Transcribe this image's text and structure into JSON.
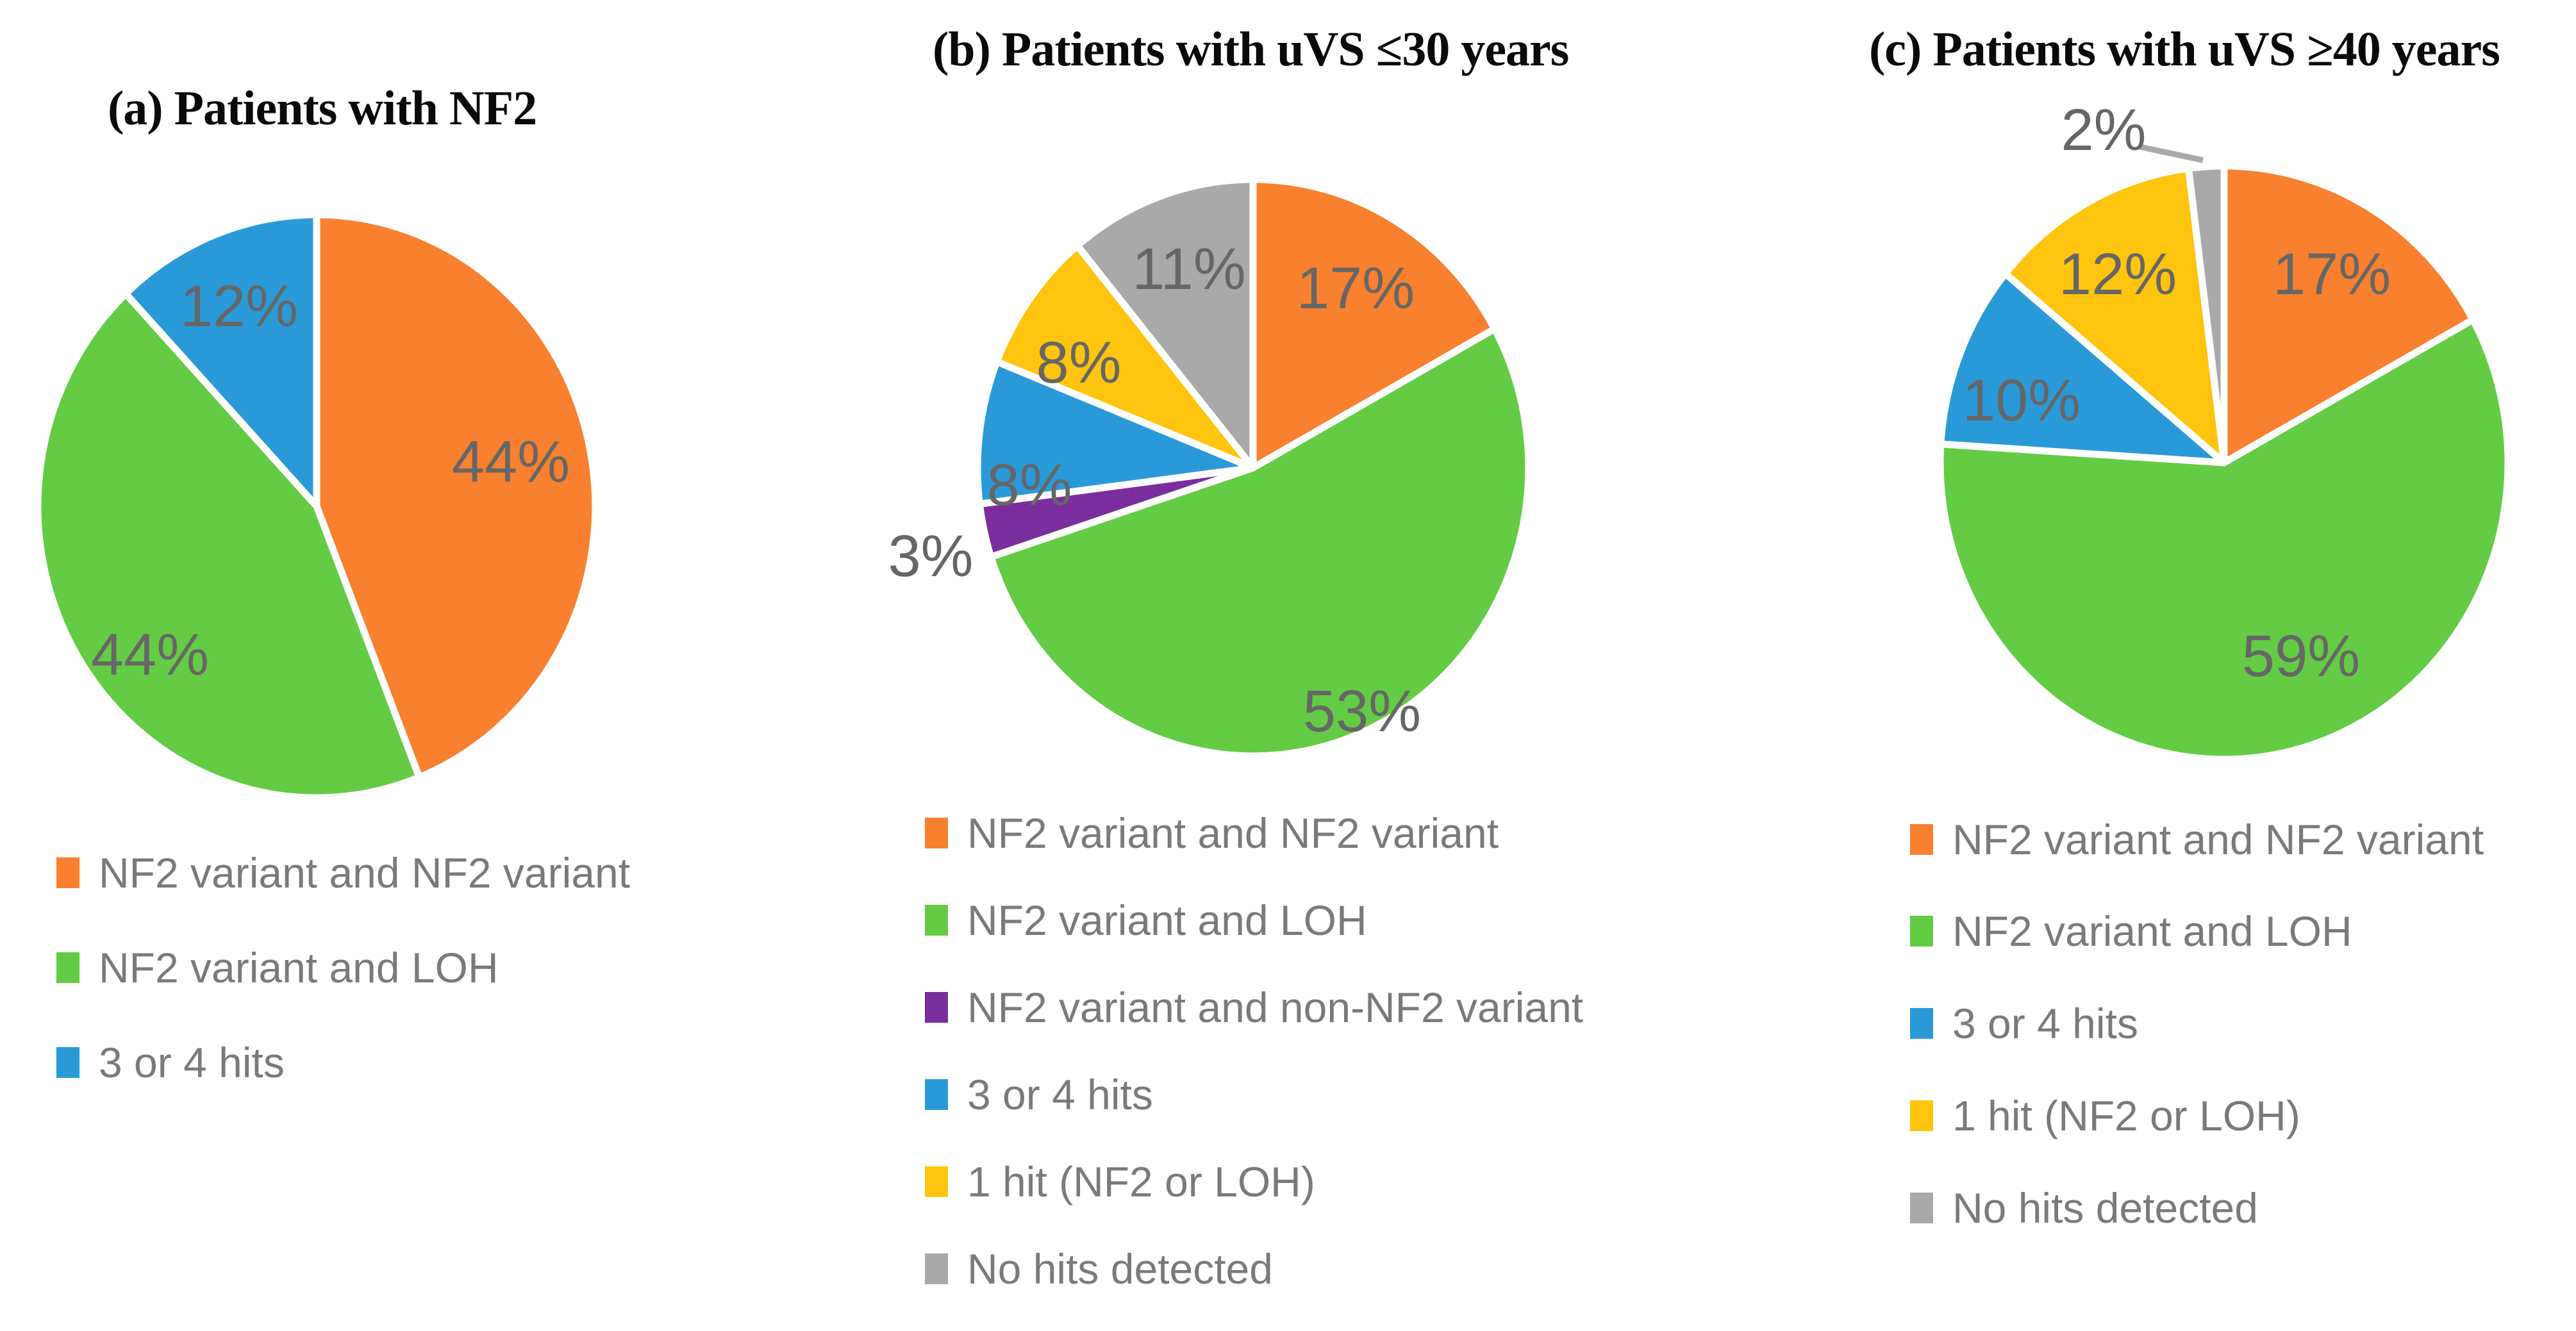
{
  "figure": {
    "background": "#ffffff",
    "pie_label_color": "#666666",
    "legend_text_color": "#7a7a7a",
    "title_color": "#0a0a0a",
    "separator_color": "#ffffff",
    "leader_line_color": "#a9a9a9"
  },
  "palette": {
    "orange": "#F8802E",
    "green": "#63CC44",
    "blue": "#299AD7",
    "purple": "#7A2E9D",
    "yellow": "#FFC40D",
    "gray": "#A9A9A9"
  },
  "chart_data": [
    {
      "type": "pie",
      "title": "(a) Patients with NF2",
      "legend_position": "bottom-left",
      "slices": [
        {
          "label": "NF2 variant and NF2 variant",
          "value": 44,
          "value_label": "44%",
          "color_key": "orange"
        },
        {
          "label": "NF2 variant and LOH",
          "value": 44,
          "value_label": "44%",
          "color_key": "green"
        },
        {
          "label": "3 or 4 hits",
          "value": 12,
          "value_label": "12%",
          "color_key": "blue"
        }
      ]
    },
    {
      "type": "pie",
      "title": "(b) Patients with uVS ≤30 years",
      "legend_position": "bottom-left",
      "slices": [
        {
          "label": "NF2 variant and NF2 variant",
          "value": 17,
          "value_label": "17%",
          "color_key": "orange"
        },
        {
          "label": "NF2 variant and LOH",
          "value": 53,
          "value_label": "53%",
          "color_key": "green"
        },
        {
          "label": "NF2 variant and non-NF2 variant",
          "value": 3,
          "value_label": "3%",
          "color_key": "purple"
        },
        {
          "label": "3 or 4 hits",
          "value": 8,
          "value_label": "8%",
          "color_key": "blue"
        },
        {
          "label": "1 hit (NF2 or LOH)",
          "value": 8,
          "value_label": "8%",
          "color_key": "yellow"
        },
        {
          "label": "No hits detected",
          "value": 11,
          "value_label": "11%",
          "color_key": "gray"
        }
      ]
    },
    {
      "type": "pie",
      "title": "(c) Patients with uVS ≥40 years",
      "legend_position": "bottom-left",
      "slices": [
        {
          "label": "NF2 variant and NF2 variant",
          "value": 17,
          "value_label": "17%",
          "color_key": "orange"
        },
        {
          "label": "NF2 variant and LOH",
          "value": 59,
          "value_label": "59%",
          "color_key": "green"
        },
        {
          "label": "3 or 4 hits",
          "value": 10,
          "value_label": "10%",
          "color_key": "blue"
        },
        {
          "label": "1 hit (NF2 or LOH)",
          "value": 12,
          "value_label": "12%",
          "color_key": "yellow"
        },
        {
          "label": "No hits detected",
          "value": 2,
          "value_label": "2%",
          "color_key": "gray"
        }
      ]
    }
  ]
}
